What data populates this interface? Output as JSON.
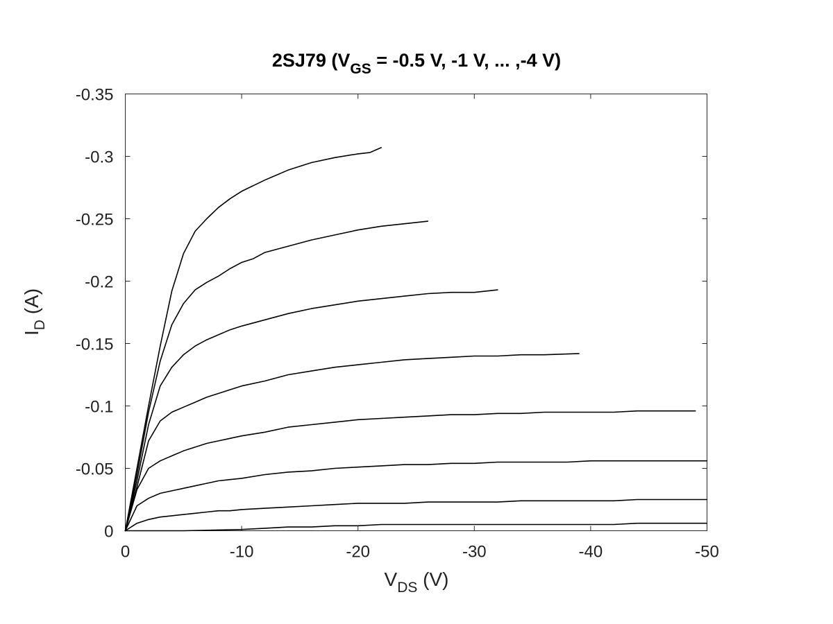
{
  "chart_data": {
    "type": "line",
    "title": {
      "main": "2SJ79 (V",
      "sub": "GS",
      "rest": " = -0.5 V, -1 V, ... ,-4 V)"
    },
    "xlabel": {
      "main": "V",
      "sub": "DS",
      "rest": " (V)"
    },
    "ylabel": {
      "main": "I",
      "sub": "D",
      "rest": " (A)"
    },
    "xlim": [
      0,
      -50
    ],
    "ylim": [
      0,
      -0.35
    ],
    "xticks": [
      0,
      -10,
      -20,
      -30,
      -40,
      -50
    ],
    "xtick_labels": [
      "0",
      "-10",
      "-20",
      "-30",
      "-40",
      "-50"
    ],
    "yticks": [
      0,
      -0.05,
      -0.1,
      -0.15,
      -0.2,
      -0.25,
      -0.3,
      -0.35
    ],
    "ytick_labels": [
      "0",
      "-0.05",
      "-0.1",
      "-0.15",
      "-0.2",
      "-0.25",
      "-0.3",
      "-0.35"
    ],
    "grid": false,
    "legend": "none",
    "line_color": "#000000",
    "series": [
      {
        "x": [
          0,
          -1,
          -2,
          -3,
          -4,
          -5,
          -6,
          -7,
          -8,
          -9,
          -10,
          -12,
          -14,
          -16,
          -18,
          -20,
          -21,
          -22
        ],
        "y": [
          0,
          -0.05,
          -0.1,
          -0.148,
          -0.192,
          -0.222,
          -0.24,
          -0.25,
          -0.259,
          -0.266,
          -0.272,
          -0.281,
          -0.289,
          -0.295,
          -0.299,
          -0.302,
          -0.303,
          -0.307
        ]
      },
      {
        "x": [
          0,
          -1,
          -2,
          -3,
          -4,
          -5,
          -6,
          -7,
          -8,
          -9,
          -10,
          -11,
          -12,
          -14,
          -16,
          -18,
          -20,
          -22,
          -24,
          -26
        ],
        "y": [
          0,
          -0.045,
          -0.095,
          -0.136,
          -0.165,
          -0.182,
          -0.193,
          -0.199,
          -0.204,
          -0.21,
          -0.215,
          -0.218,
          -0.223,
          -0.228,
          -0.233,
          -0.237,
          -0.241,
          -0.244,
          -0.246,
          -0.248
        ]
      },
      {
        "x": [
          0,
          -1,
          -2,
          -3,
          -4,
          -5,
          -6,
          -7,
          -8,
          -9,
          -10,
          -12,
          -14,
          -16,
          -18,
          -20,
          -22,
          -24,
          -26,
          -28,
          -30,
          -32
        ],
        "y": [
          0,
          -0.04,
          -0.085,
          -0.116,
          -0.131,
          -0.141,
          -0.148,
          -0.153,
          -0.157,
          -0.161,
          -0.164,
          -0.169,
          -0.174,
          -0.178,
          -0.181,
          -0.184,
          -0.186,
          -0.188,
          -0.19,
          -0.191,
          -0.191,
          -0.193
        ]
      },
      {
        "x": [
          0,
          -1,
          -2,
          -3,
          -4,
          -5,
          -6,
          -7,
          -8,
          -9,
          -10,
          -12,
          -14,
          -16,
          -18,
          -20,
          -22,
          -24,
          -26,
          -28,
          -30,
          -32,
          -34,
          -36,
          -39
        ],
        "y": [
          0,
          -0.035,
          -0.072,
          -0.088,
          -0.095,
          -0.099,
          -0.103,
          -0.107,
          -0.11,
          -0.113,
          -0.116,
          -0.12,
          -0.125,
          -0.128,
          -0.131,
          -0.133,
          -0.135,
          -0.137,
          -0.138,
          -0.139,
          -0.14,
          -0.14,
          -0.141,
          -0.141,
          -0.142
        ]
      },
      {
        "x": [
          0,
          -1,
          -2,
          -3,
          -4,
          -5,
          -6,
          -7,
          -8,
          -9,
          -10,
          -12,
          -14,
          -16,
          -18,
          -20,
          -22,
          -24,
          -26,
          -28,
          -30,
          -32,
          -34,
          -36,
          -38,
          -40,
          -42,
          -44,
          -46,
          -49
        ],
        "y": [
          0,
          -0.033,
          -0.05,
          -0.056,
          -0.06,
          -0.064,
          -0.067,
          -0.07,
          -0.072,
          -0.074,
          -0.076,
          -0.079,
          -0.083,
          -0.085,
          -0.087,
          -0.089,
          -0.09,
          -0.091,
          -0.092,
          -0.093,
          -0.093,
          -0.094,
          -0.094,
          -0.095,
          -0.095,
          -0.095,
          -0.095,
          -0.096,
          -0.096,
          -0.096
        ]
      },
      {
        "x": [
          0,
          -1,
          -2,
          -3,
          -4,
          -5,
          -6,
          -7,
          -8,
          -9,
          -10,
          -12,
          -14,
          -16,
          -18,
          -20,
          -22,
          -24,
          -26,
          -28,
          -30,
          -32,
          -34,
          -36,
          -38,
          -40,
          -42,
          -44,
          -46,
          -48,
          -50
        ],
        "y": [
          0,
          -0.02,
          -0.026,
          -0.03,
          -0.032,
          -0.034,
          -0.036,
          -0.038,
          -0.04,
          -0.041,
          -0.042,
          -0.045,
          -0.047,
          -0.048,
          -0.05,
          -0.051,
          -0.052,
          -0.053,
          -0.053,
          -0.054,
          -0.054,
          -0.055,
          -0.055,
          -0.055,
          -0.055,
          -0.056,
          -0.056,
          -0.056,
          -0.056,
          -0.056,
          -0.056
        ]
      },
      {
        "x": [
          0,
          -1,
          -2,
          -3,
          -4,
          -5,
          -6,
          -7,
          -8,
          -9,
          -10,
          -12,
          -14,
          -16,
          -18,
          -20,
          -22,
          -24,
          -26,
          -28,
          -30,
          -32,
          -34,
          -36,
          -38,
          -40,
          -42,
          -44,
          -46,
          -48,
          -50
        ],
        "y": [
          0,
          -0.006,
          -0.009,
          -0.011,
          -0.012,
          -0.013,
          -0.014,
          -0.015,
          -0.016,
          -0.016,
          -0.017,
          -0.018,
          -0.019,
          -0.02,
          -0.021,
          -0.022,
          -0.022,
          -0.022,
          -0.023,
          -0.023,
          -0.023,
          -0.023,
          -0.024,
          -0.024,
          -0.024,
          -0.024,
          -0.024,
          -0.025,
          -0.025,
          -0.025,
          -0.025
        ]
      },
      {
        "x": [
          0,
          -5,
          -10,
          -12,
          -14,
          -16,
          -18,
          -20,
          -22,
          -24,
          -26,
          -28,
          -30,
          -32,
          -34,
          -36,
          -38,
          -40,
          -42,
          -44,
          -46,
          -48,
          -50
        ],
        "y": [
          0,
          0,
          -0.001,
          -0.002,
          -0.003,
          -0.003,
          -0.004,
          -0.004,
          -0.005,
          -0.005,
          -0.005,
          -0.005,
          -0.005,
          -0.005,
          -0.005,
          -0.005,
          -0.005,
          -0.005,
          -0.005,
          -0.006,
          -0.006,
          -0.006,
          -0.006
        ]
      }
    ]
  }
}
